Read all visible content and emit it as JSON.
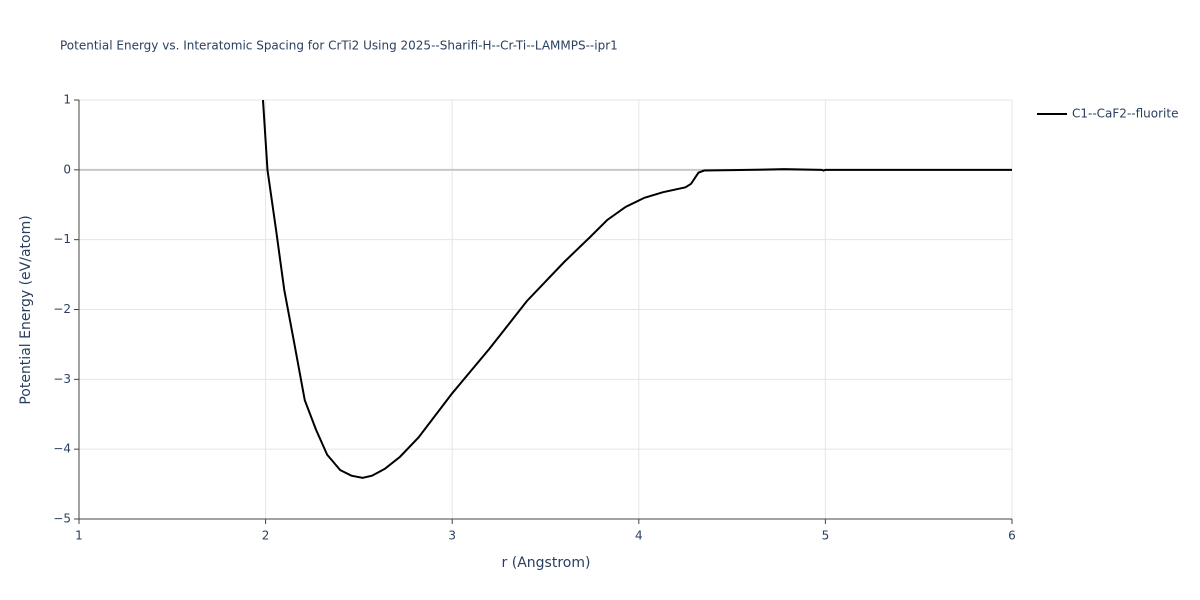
{
  "chart_data": {
    "type": "line",
    "title": "Potential Energy vs. Interatomic Spacing for CrTi2 Using 2025--Sharifi-H--Cr-Ti--LAMMPS--ipr1",
    "x_label": "r (Angstrom)",
    "y_label": "Potential Energy (eV/atom)",
    "xlim": [
      1,
      6
    ],
    "ylim": [
      -5,
      1
    ],
    "xticks": [
      1,
      2,
      3,
      4,
      5,
      6
    ],
    "yticks": [
      {
        "value": -5,
        "label": "−5"
      },
      {
        "value": -4,
        "label": "−4"
      },
      {
        "value": -3,
        "label": "−3"
      },
      {
        "value": -2,
        "label": "−2"
      },
      {
        "value": -1,
        "label": "−1"
      },
      0,
      1
    ],
    "grid": true,
    "legend": "top-right",
    "series": [
      {
        "name": "C1--CaF2--fluorite",
        "color": "#000000",
        "x": [
          1.986,
          2.01,
          2.056,
          2.1,
          2.15,
          2.21,
          2.27,
          2.33,
          2.4,
          2.46,
          2.52,
          2.57,
          2.64,
          2.72,
          2.82,
          3.0,
          3.2,
          3.4,
          3.6,
          3.74,
          3.83,
          3.93,
          4.03,
          4.13,
          4.25,
          4.28,
          4.32,
          4.35,
          4.5,
          4.78,
          4.98,
          4.99,
          5.0,
          5.5,
          6.0
        ],
        "values": [
          1.0,
          0,
          -0.86,
          -1.72,
          -2.43,
          -3.3,
          -3.72,
          -4.08,
          -4.3,
          -4.38,
          -4.41,
          -4.38,
          -4.28,
          -4.11,
          -3.83,
          -3.2,
          -2.56,
          -1.88,
          -1.32,
          -0.96,
          -0.72,
          -0.53,
          -0.4,
          -0.32,
          -0.25,
          -0.2,
          -0.04,
          -0.01,
          -0.005,
          0.01,
          0.0,
          -0.01,
          0,
          0,
          0
        ]
      }
    ]
  }
}
